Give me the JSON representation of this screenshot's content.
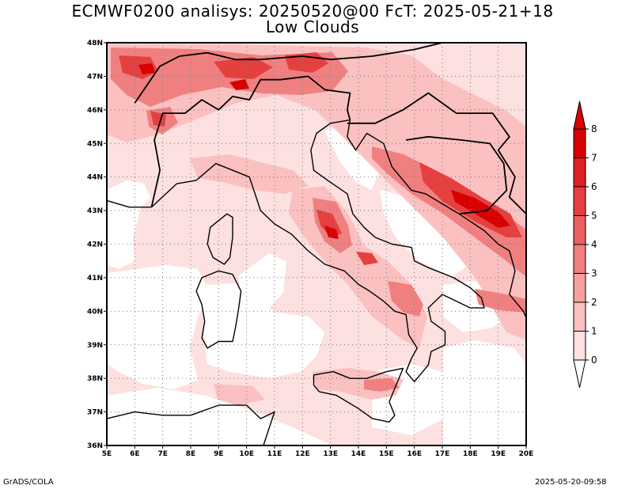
{
  "title": {
    "line1": "ECMWF0200 analisys: 20250520@00 FcT: 2025-05-21+18",
    "line2": "Low Clouds"
  },
  "footer": {
    "left": "GrADS/COLA",
    "right": "2025-05-20-09:58"
  },
  "map": {
    "lon_min": 5,
    "lon_max": 20,
    "lat_min": 36,
    "lat_max": 48,
    "lon_labels": [
      "5E",
      "6E",
      "7E",
      "8E",
      "9E",
      "10E",
      "11E",
      "12E",
      "13E",
      "14E",
      "15E",
      "16E",
      "17E",
      "18E",
      "19E",
      "20E"
    ],
    "lat_labels": [
      "36N",
      "37N",
      "38N",
      "39N",
      "40N",
      "41N",
      "42N",
      "43N",
      "44N",
      "45N",
      "46N",
      "47N",
      "48N"
    ],
    "grid": "dotted",
    "coastline_color": "#000000"
  },
  "colorbar": {
    "levels": [
      "0",
      "1",
      "2",
      "3",
      "4",
      "5",
      "6",
      "7",
      "8"
    ],
    "colors": [
      "#ffffff",
      "#fde0e0",
      "#fbc0c0",
      "#f6a0a0",
      "#f08080",
      "#ea6060",
      "#e44040",
      "#de2020",
      "#d80000"
    ],
    "extend": "both"
  }
}
